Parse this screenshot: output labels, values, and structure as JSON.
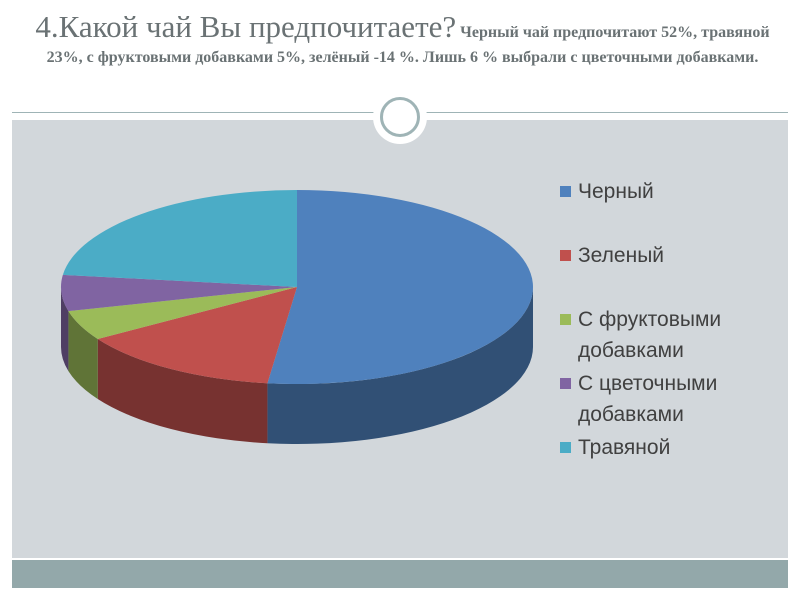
{
  "slide": {
    "title_main": "4.Какой чай Вы предпочитаете?",
    "title_detail": "Черный чай предпочитают 52%, травяной 23%, с фруктовыми добавками 5%, зелёный -14 %. Лишь 6 % выбрали с цветочными добавками."
  },
  "colors": {
    "header_rule": "#9fb4b6",
    "panel_background": "#d2d7db",
    "footer_band": "#93a8aa",
    "title_text": "#6a7274"
  },
  "legend": [
    {
      "label": "Черный",
      "color": "#4f81bd"
    },
    {
      "label": "Зеленый",
      "color": "#c0504d"
    },
    {
      "label": "С фруктовыми добавками",
      "color": "#9bbb59"
    },
    {
      "label": "С цветочными добавками",
      "color": "#8064a2"
    },
    {
      "label": "Травяной",
      "color": "#4bacc6"
    }
  ],
  "chart_data": {
    "type": "pie",
    "style": "3d",
    "title": "",
    "categories": [
      "Черный",
      "Зеленый",
      "С фруктовыми добавками",
      "С цветочными добавками",
      "Травяной"
    ],
    "values": [
      52,
      14,
      5,
      6,
      23
    ],
    "unit": "%",
    "colors": [
      "#4f81bd",
      "#c0504d",
      "#9bbb59",
      "#8064a2",
      "#4bacc6"
    ],
    "legend_position": "right",
    "data_labels": false
  }
}
